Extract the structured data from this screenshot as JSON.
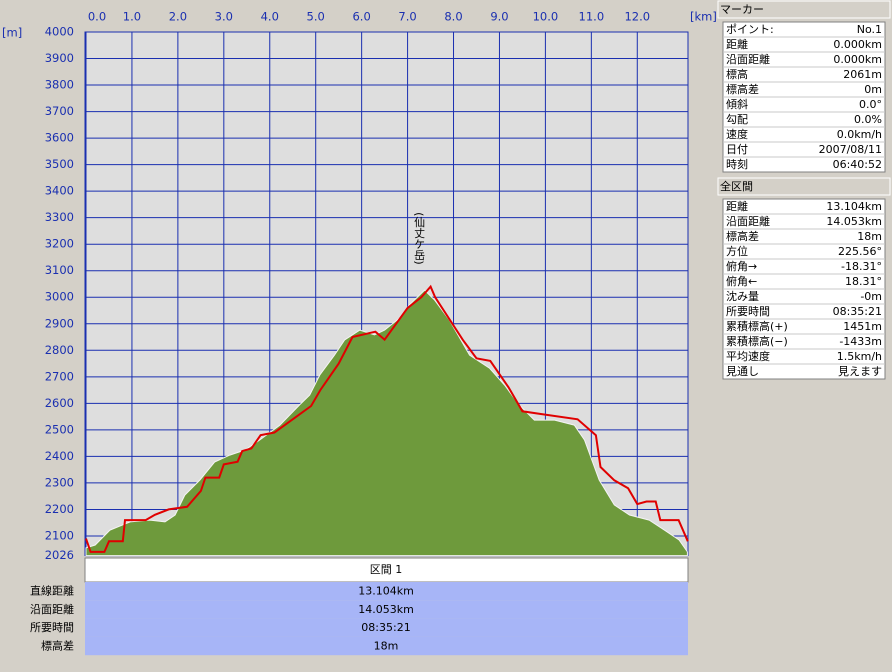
{
  "chart_data": {
    "type": "area",
    "y_unit": "[m]",
    "x_unit": "[km]",
    "annotation": "(仙丈ケ岳)",
    "xlim": [
      0,
      13.104
    ],
    "ylim": [
      2026,
      4000
    ],
    "xticks": [
      {
        "value": 0,
        "label": "0.0"
      },
      {
        "value": 1,
        "label": "1.0"
      },
      {
        "value": 2,
        "label": "2.0"
      },
      {
        "value": 3,
        "label": "3.0"
      },
      {
        "value": 4,
        "label": "4.0"
      },
      {
        "value": 5,
        "label": "5.0"
      },
      {
        "value": 6,
        "label": "6.0"
      },
      {
        "value": 7,
        "label": "7.0"
      },
      {
        "value": 8,
        "label": "8.0"
      },
      {
        "value": 9,
        "label": "9.0"
      },
      {
        "value": 10,
        "label": "10.0"
      },
      {
        "value": 11,
        "label": "11.0"
      },
      {
        "value": 12,
        "label": "12.0"
      }
    ],
    "yticks": [
      2026,
      2100,
      2200,
      2300,
      2400,
      2500,
      2600,
      2700,
      2800,
      2900,
      3000,
      3100,
      3200,
      3300,
      3400,
      3500,
      3600,
      3700,
      3800,
      3900,
      4000
    ],
    "grid": true,
    "series": [
      {
        "type": "area",
        "color": "#6e9a3c",
        "x": [
          0,
          0.2,
          0.52,
          0.96,
          1.39,
          1.72,
          1.94,
          2.15,
          2.48,
          2.8,
          3.13,
          3.46,
          3.78,
          4.22,
          4.65,
          4.87,
          5.09,
          5.41,
          5.63,
          5.96,
          6.28,
          6.5,
          6.83,
          7.04,
          7.37,
          7.59,
          7.91,
          8.35,
          8.78,
          9.11,
          9.43,
          9.76,
          10.2,
          10.63,
          10.85,
          11.17,
          11.5,
          11.83,
          12.26,
          12.59,
          12.91,
          13.09
        ],
        "values": [
          2055,
          2066,
          2122,
          2153,
          2160,
          2153,
          2179,
          2254,
          2311,
          2379,
          2405,
          2424,
          2462,
          2518,
          2594,
          2631,
          2707,
          2782,
          2839,
          2876,
          2858,
          2876,
          2922,
          2971,
          3027,
          2989,
          2914,
          2782,
          2733,
          2669,
          2594,
          2537,
          2537,
          2518,
          2462,
          2311,
          2217,
          2179,
          2160,
          2122,
          2085,
          2040
        ]
      },
      {
        "type": "line",
        "color": "#e00000",
        "x": [
          0,
          0.1,
          0.4,
          0.5,
          0.8,
          0.85,
          1.3,
          1.5,
          1.8,
          2.2,
          2.5,
          2.6,
          2.9,
          3.0,
          3.3,
          3.4,
          3.6,
          3.8,
          4.1,
          4.5,
          4.9,
          5.1,
          5.5,
          5.8,
          6.3,
          6.5,
          7.0,
          7.3,
          7.5,
          7.6,
          8.2,
          8.5,
          8.8,
          9.2,
          9.5,
          9.9,
          10.7,
          11.1,
          11.2,
          11.5,
          11.8,
          12.0,
          12.2,
          12.4,
          12.5,
          12.9,
          13.1
        ],
        "values": [
          2090,
          2040,
          2040,
          2080,
          2080,
          2160,
          2160,
          2180,
          2200,
          2210,
          2270,
          2320,
          2320,
          2370,
          2380,
          2420,
          2430,
          2480,
          2490,
          2540,
          2590,
          2650,
          2750,
          2850,
          2870,
          2840,
          2960,
          3000,
          3040,
          3000,
          2840,
          2770,
          2760,
          2660,
          2570,
          2560,
          2540,
          2480,
          2360,
          2310,
          2280,
          2220,
          2230,
          2230,
          2160,
          2160,
          2080
        ]
      }
    ]
  },
  "marker_panel": {
    "title": "マーカー",
    "rows": [
      [
        "ポイント:",
        "No.1"
      ],
      [
        "距離",
        "0.000km"
      ],
      [
        "沿面距離",
        "0.000km"
      ],
      [
        "標高",
        "2061m"
      ],
      [
        "標高差",
        "0m"
      ],
      [
        "傾斜",
        "0.0°"
      ],
      [
        "勾配",
        "0.0%"
      ],
      [
        "速度",
        "0.0km/h"
      ],
      [
        "日付",
        "2007/08/11"
      ],
      [
        "時刻",
        "06:40:52"
      ]
    ]
  },
  "total_panel": {
    "title": "全区間",
    "rows": [
      [
        "距離",
        "13.104km"
      ],
      [
        "沿面距離",
        "14.053km"
      ],
      [
        "標高差",
        "18m"
      ],
      [
        "方位",
        "225.56°"
      ],
      [
        "俯角→",
        "-18.31°"
      ],
      [
        "俯角←",
        "18.31°"
      ],
      [
        "沈み量",
        "-0m"
      ],
      [
        "所要時間",
        "08:35:21"
      ],
      [
        "累積標高(+)",
        "1451m"
      ],
      [
        "累積標高(−)",
        "-1433m"
      ],
      [
        "平均速度",
        "1.5km/h"
      ],
      [
        "見通し",
        "見えます"
      ]
    ]
  },
  "section_table": {
    "header": "区間 1",
    "rows": [
      [
        "直線距離",
        "13.104km"
      ],
      [
        "沿面距離",
        "14.053km"
      ],
      [
        "所要時間",
        "08:35:21"
      ],
      [
        "標高差",
        "18m"
      ]
    ]
  }
}
